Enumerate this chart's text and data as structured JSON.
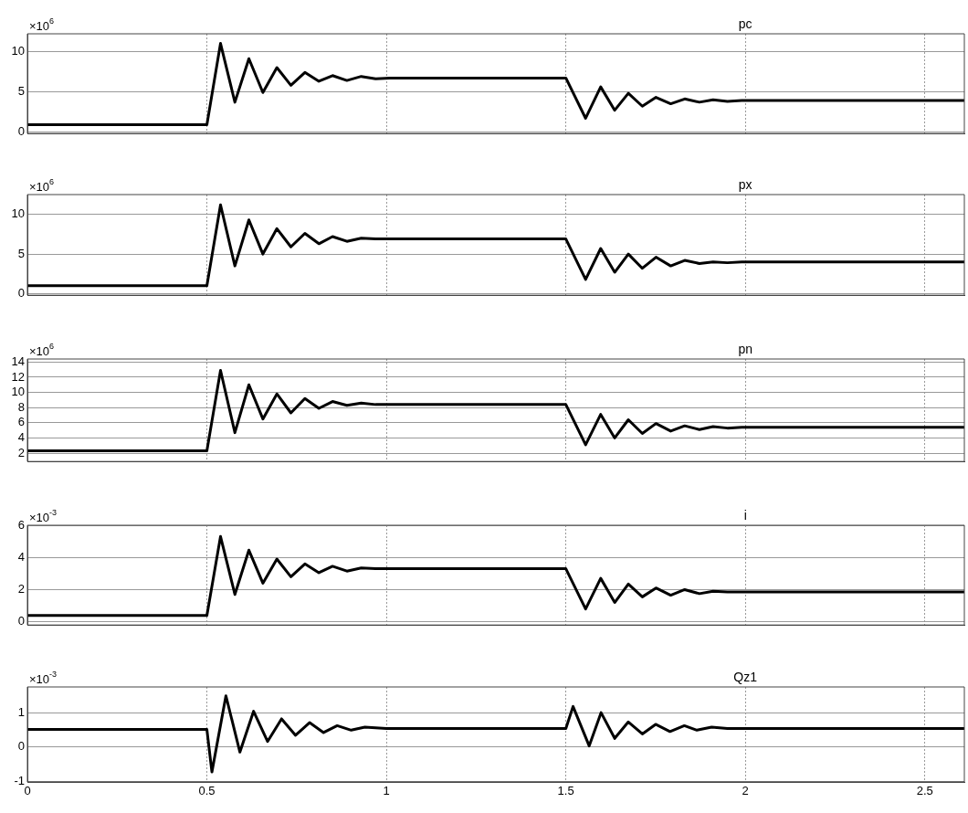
{
  "chart_data": [
    {
      "type": "line",
      "title": "pc",
      "annotations": [
        "×10$^{6}$"
      ],
      "x": [
        0,
        0.5,
        0.538,
        0.578,
        0.617,
        0.656,
        0.695,
        0.734,
        0.773,
        0.812,
        0.85,
        0.89,
        0.93,
        0.97,
        1.01,
        1.5,
        1.555,
        1.597,
        1.636,
        1.674,
        1.713,
        1.751,
        1.792,
        1.831,
        1.872,
        1.91,
        1.95,
        1.99,
        2.61
      ],
      "series": [
        {
          "color": "#000000",
          "values": [
            0.9,
            0.9,
            11.0,
            3.7,
            9.1,
            4.9,
            8.0,
            5.8,
            7.4,
            6.3,
            7.0,
            6.4,
            6.9,
            6.6,
            6.7,
            6.7,
            1.7,
            5.6,
            2.7,
            4.8,
            3.2,
            4.3,
            3.5,
            4.1,
            3.7,
            4.0,
            3.8,
            3.9,
            3.9
          ]
        }
      ],
      "xlim": [
        0,
        2.61
      ],
      "xticks": [
        0,
        0.5,
        1,
        1.5,
        2,
        2.5
      ],
      "ylim": [
        -0.2,
        12.2
      ],
      "yticks": [
        0,
        5,
        10
      ],
      "grid": true,
      "tick_labels": "y"
    },
    {
      "type": "line",
      "title": "px",
      "annotations": [
        "×10$^{6}$"
      ],
      "x": [
        0,
        0.5,
        0.538,
        0.578,
        0.617,
        0.656,
        0.695,
        0.734,
        0.773,
        0.812,
        0.85,
        0.89,
        0.93,
        0.97,
        1.01,
        1.5,
        1.555,
        1.597,
        1.636,
        1.674,
        1.713,
        1.751,
        1.792,
        1.831,
        1.872,
        1.91,
        1.95,
        1.99,
        2.61
      ],
      "series": [
        {
          "color": "#000000",
          "values": [
            1.0,
            1.0,
            11.2,
            3.5,
            9.3,
            5.0,
            8.2,
            5.9,
            7.6,
            6.3,
            7.2,
            6.6,
            7.0,
            6.9,
            6.9,
            6.9,
            1.8,
            5.7,
            2.7,
            5.0,
            3.2,
            4.6,
            3.5,
            4.2,
            3.8,
            4.0,
            3.9,
            4.0,
            4.0
          ]
        }
      ],
      "xlim": [
        0,
        2.61
      ],
      "xticks": [
        0,
        0.5,
        1,
        1.5,
        2,
        2.5
      ],
      "ylim": [
        -0.2,
        12.5
      ],
      "yticks": [
        0,
        5,
        10
      ],
      "grid": true,
      "tick_labels": "y"
    },
    {
      "type": "line",
      "title": "pn",
      "annotations": [
        "×10$^{6}$"
      ],
      "x": [
        0,
        0.5,
        0.538,
        0.578,
        0.617,
        0.656,
        0.695,
        0.734,
        0.773,
        0.812,
        0.85,
        0.89,
        0.93,
        0.97,
        1.01,
        1.5,
        1.555,
        1.597,
        1.636,
        1.674,
        1.713,
        1.751,
        1.792,
        1.831,
        1.872,
        1.91,
        1.95,
        1.99,
        2.61
      ],
      "series": [
        {
          "color": "#000000",
          "values": [
            2.3,
            2.3,
            12.9,
            4.7,
            11.0,
            6.5,
            9.8,
            7.3,
            9.2,
            7.9,
            8.8,
            8.3,
            8.6,
            8.4,
            8.4,
            8.4,
            3.1,
            7.1,
            4.0,
            6.4,
            4.6,
            5.9,
            4.9,
            5.6,
            5.1,
            5.5,
            5.3,
            5.4,
            5.4
          ]
        }
      ],
      "xlim": [
        0,
        2.61
      ],
      "xticks": [
        0,
        0.5,
        1,
        1.5,
        2,
        2.5
      ],
      "ylim": [
        0.9,
        14.4
      ],
      "yticks": [
        2,
        4,
        6,
        8,
        10,
        12,
        14
      ],
      "grid": true,
      "tick_labels": "y"
    },
    {
      "type": "line",
      "title": "i",
      "annotations": [
        "×10$^{-3}$"
      ],
      "x": [
        0,
        0.5,
        0.538,
        0.578,
        0.617,
        0.656,
        0.695,
        0.734,
        0.773,
        0.812,
        0.85,
        0.89,
        0.93,
        0.97,
        1.01,
        1.5,
        1.555,
        1.597,
        1.636,
        1.674,
        1.713,
        1.751,
        1.792,
        1.831,
        1.872,
        1.91,
        1.95,
        1.99,
        2.61
      ],
      "series": [
        {
          "color": "#000000",
          "values": [
            0.4,
            0.4,
            5.3,
            1.7,
            4.45,
            2.4,
            3.9,
            2.8,
            3.6,
            3.05,
            3.45,
            3.15,
            3.35,
            3.3,
            3.3,
            3.3,
            0.8,
            2.7,
            1.2,
            2.35,
            1.55,
            2.1,
            1.65,
            2.0,
            1.75,
            1.9,
            1.85,
            1.85,
            1.85
          ]
        }
      ],
      "xlim": [
        0,
        2.61
      ],
      "xticks": [
        0,
        0.5,
        1,
        1.5,
        2,
        2.5
      ],
      "ylim": [
        -0.2,
        6
      ],
      "yticks": [
        0,
        2,
        4,
        6
      ],
      "grid": true,
      "tick_labels": "y"
    },
    {
      "type": "line",
      "title": "Qz1",
      "annotations": [
        "×10$^{-3}$"
      ],
      "x": [
        0,
        0.5,
        0.514,
        0.553,
        0.592,
        0.63,
        0.669,
        0.708,
        0.747,
        0.786,
        0.825,
        0.863,
        0.902,
        0.94,
        1.0,
        1.5,
        1.52,
        1.565,
        1.598,
        1.636,
        1.674,
        1.713,
        1.75,
        1.79,
        1.83,
        1.865,
        1.906,
        1.95,
        2.61
      ],
      "series": [
        {
          "color": "#000000",
          "values": [
            0.51,
            0.51,
            -0.73,
            1.49,
            -0.15,
            1.04,
            0.16,
            0.82,
            0.34,
            0.71,
            0.42,
            0.62,
            0.49,
            0.58,
            0.54,
            0.54,
            1.18,
            0.03,
            1.0,
            0.25,
            0.73,
            0.38,
            0.66,
            0.45,
            0.62,
            0.49,
            0.58,
            0.54,
            0.54
          ]
        }
      ],
      "xlim": [
        0,
        2.61
      ],
      "xticks": [
        0,
        0.5,
        1,
        1.5,
        2,
        2.5
      ],
      "ylim": [
        -1.02,
        1.75
      ],
      "yticks": [
        -1,
        0,
        1
      ],
      "grid": true
    }
  ]
}
